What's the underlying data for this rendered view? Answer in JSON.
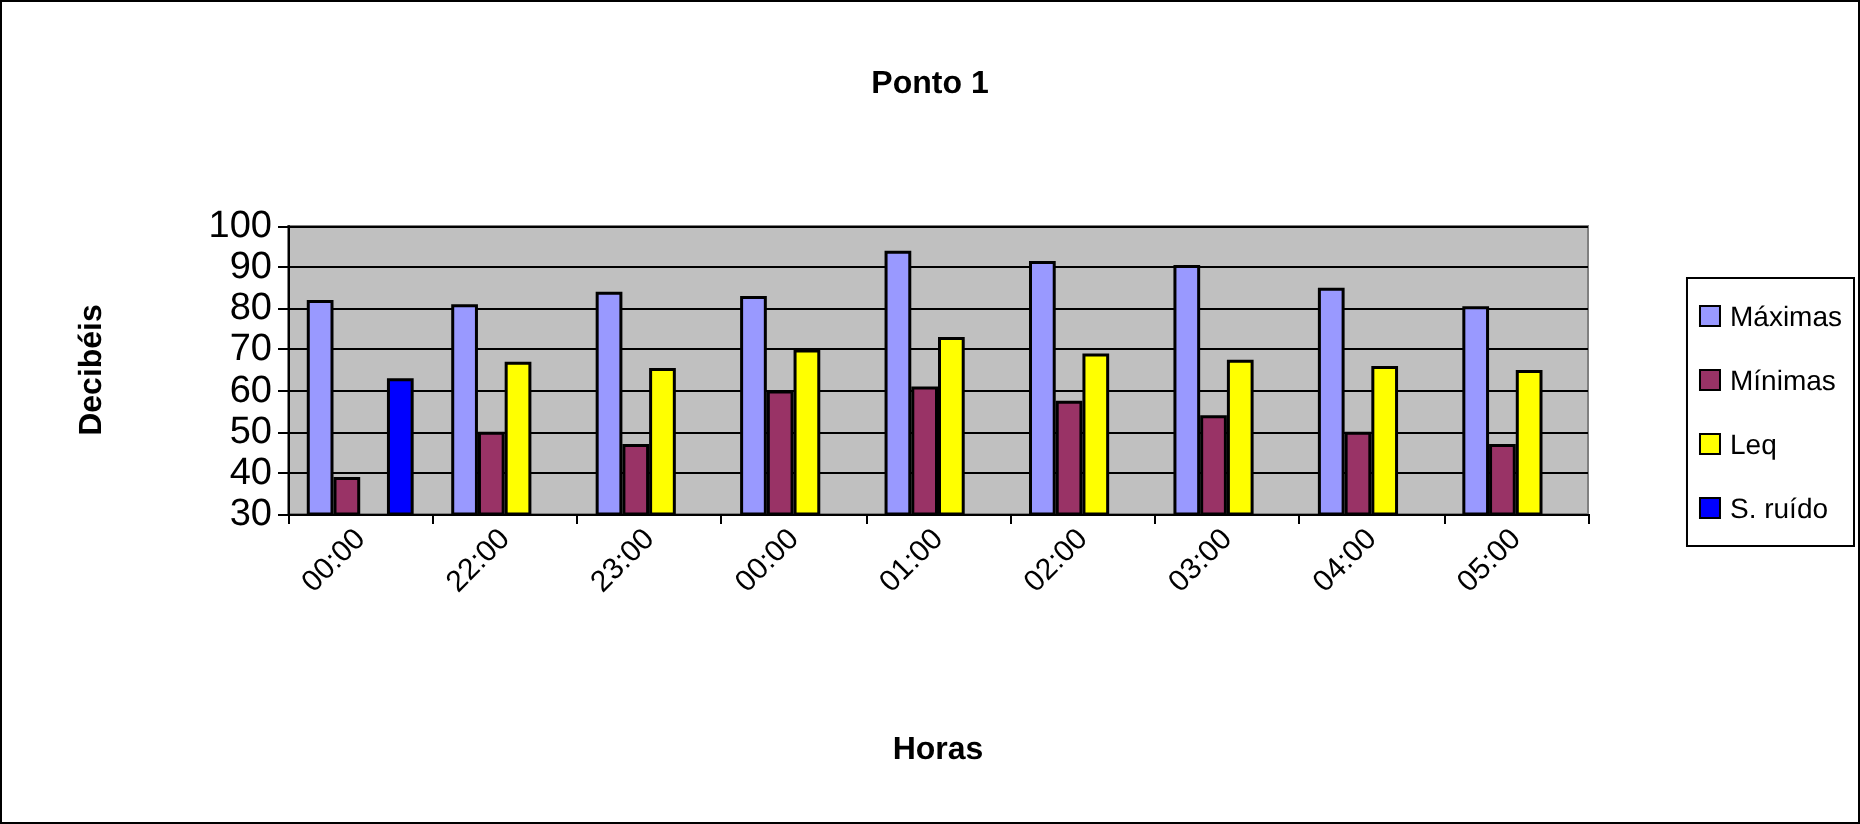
{
  "chart_data": {
    "type": "bar",
    "title": "Ponto 1",
    "xlabel": "Horas",
    "ylabel": "Decibéis",
    "categories": [
      "00:00",
      "22:00",
      "23:00",
      "00:00",
      "01:00",
      "02:00",
      "03:00",
      "04:00",
      "05:00"
    ],
    "series": [
      {
        "name": "Máximas",
        "color": "#9999ff",
        "values": [
          82,
          81,
          84,
          83,
          94,
          91.5,
          90.5,
          85,
          80.5
        ]
      },
      {
        "name": "Mínimas",
        "color": "#993366",
        "values": [
          39,
          50,
          47,
          60,
          61,
          57.5,
          54,
          50,
          47
        ]
      },
      {
        "name": "Leq",
        "color": "#ffff00",
        "values": [
          null,
          67,
          65.5,
          70,
          73,
          69,
          67.5,
          66,
          65
        ]
      },
      {
        "name": "S. ruído",
        "color": "#0000ff",
        "values": [
          63,
          null,
          null,
          null,
          null,
          null,
          null,
          null,
          null
        ]
      }
    ],
    "ylim": [
      30,
      100
    ],
    "yticks": [
      30,
      40,
      50,
      60,
      70,
      80,
      90,
      100
    ],
    "grid": "y",
    "legend": "right"
  }
}
